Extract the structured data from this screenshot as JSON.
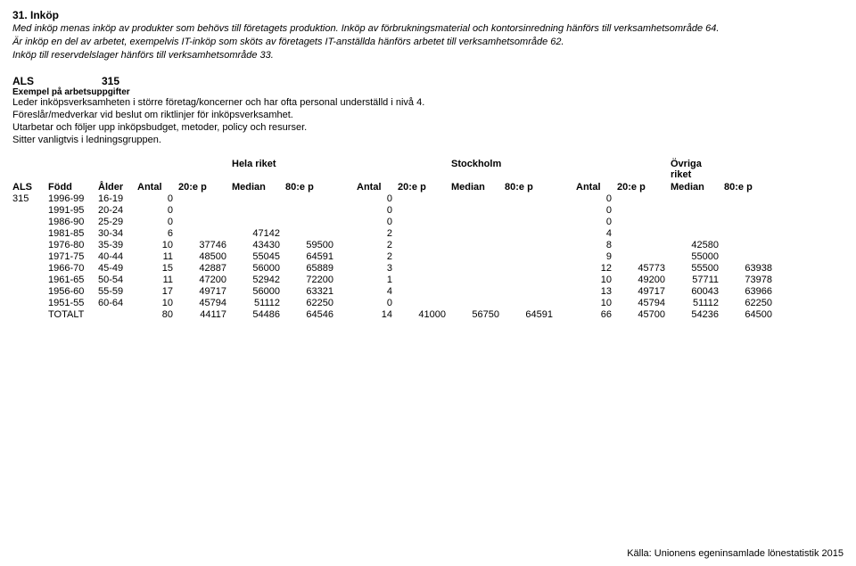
{
  "header": {
    "title": "31. Inköp",
    "intro_lines": [
      "Med inköp menas inköp av produkter som behövs till företagets produktion. Inköp av förbrukningsmaterial och kontorsinredning hänförs till verksamhetsområde 64.",
      "Är inköp en del av arbetet, exempelvis IT-inköp som sköts av företagets IT-anställda hänförs arbetet till verksamhetsområde 62.",
      " Inköp till reservdelslager hänförs till verksamhetsområde 33."
    ]
  },
  "als": {
    "label": "ALS",
    "code": "315",
    "example_heading": "Exempel på arbetsuppgifter",
    "example_lines": [
      "Leder inköpsverksamheten i större företag/koncerner och har ofta personal underställd i nivå 4.",
      "Föreslår/medverkar vid beslut om riktlinjer för inköpsverksamhet.",
      "Utarbetar och följer upp inköpsbudget, metoder, policy och resurser.",
      "Sitter vanligtvis i ledningsgruppen."
    ]
  },
  "table": {
    "region_labels": [
      "Hela riket",
      "Stockholm",
      "Övriga riket"
    ],
    "columns": {
      "als": "ALS",
      "fodd": "Född",
      "alder": "Ålder",
      "antal": "Antal",
      "p20": "20:e p",
      "median": "Median",
      "p80": "80:e p"
    },
    "rows": [
      {
        "als": "315",
        "fodd": "1996-99",
        "alder": "16-19",
        "r1": {
          "antal": "0"
        },
        "r2": {
          "antal": "0"
        },
        "r3": {
          "antal": "0"
        }
      },
      {
        "als": "",
        "fodd": "1991-95",
        "alder": "20-24",
        "r1": {
          "antal": "0"
        },
        "r2": {
          "antal": "0"
        },
        "r3": {
          "antal": "0"
        }
      },
      {
        "als": "",
        "fodd": "1986-90",
        "alder": "25-29",
        "r1": {
          "antal": "0"
        },
        "r2": {
          "antal": "0"
        },
        "r3": {
          "antal": "0"
        }
      },
      {
        "als": "",
        "fodd": "1981-85",
        "alder": "30-34",
        "r1": {
          "antal": "6",
          "median": "47142"
        },
        "r2": {
          "antal": "2"
        },
        "r3": {
          "antal": "4"
        }
      },
      {
        "als": "",
        "fodd": "1976-80",
        "alder": "35-39",
        "r1": {
          "antal": "10",
          "p20": "37746",
          "median": "43430",
          "p80": "59500"
        },
        "r2": {
          "antal": "2"
        },
        "r3": {
          "antal": "8",
          "median": "42580"
        }
      },
      {
        "als": "",
        "fodd": "1971-75",
        "alder": "40-44",
        "r1": {
          "antal": "11",
          "p20": "48500",
          "median": "55045",
          "p80": "64591"
        },
        "r2": {
          "antal": "2"
        },
        "r3": {
          "antal": "9",
          "median": "55000"
        }
      },
      {
        "als": "",
        "fodd": "1966-70",
        "alder": "45-49",
        "r1": {
          "antal": "15",
          "p20": "42887",
          "median": "56000",
          "p80": "65889"
        },
        "r2": {
          "antal": "3"
        },
        "r3": {
          "antal": "12",
          "p20": "45773",
          "median": "55500",
          "p80": "63938"
        }
      },
      {
        "als": "",
        "fodd": "1961-65",
        "alder": "50-54",
        "r1": {
          "antal": "11",
          "p20": "47200",
          "median": "52942",
          "p80": "72200"
        },
        "r2": {
          "antal": "1"
        },
        "r3": {
          "antal": "10",
          "p20": "49200",
          "median": "57711",
          "p80": "73978"
        }
      },
      {
        "als": "",
        "fodd": "1956-60",
        "alder": "55-59",
        "r1": {
          "antal": "17",
          "p20": "49717",
          "median": "56000",
          "p80": "63321"
        },
        "r2": {
          "antal": "4"
        },
        "r3": {
          "antal": "13",
          "p20": "49717",
          "median": "60043",
          "p80": "63966"
        }
      },
      {
        "als": "",
        "fodd": "1951-55",
        "alder": "60-64",
        "r1": {
          "antal": "10",
          "p20": "45794",
          "median": "51112",
          "p80": "62250"
        },
        "r2": {
          "antal": "0"
        },
        "r3": {
          "antal": "10",
          "p20": "45794",
          "median": "51112",
          "p80": "62250"
        }
      },
      {
        "als": "",
        "fodd": "TOTALT",
        "alder": "",
        "r1": {
          "antal": "80",
          "p20": "44117",
          "median": "54486",
          "p80": "64546"
        },
        "r2": {
          "antal": "14",
          "p20": "41000",
          "median": "56750",
          "p80": "64591"
        },
        "r3": {
          "antal": "66",
          "p20": "45700",
          "median": "54236",
          "p80": "64500"
        }
      }
    ]
  },
  "footer": "Källa: Unionens egeninsamlade lönestatistik 2015"
}
